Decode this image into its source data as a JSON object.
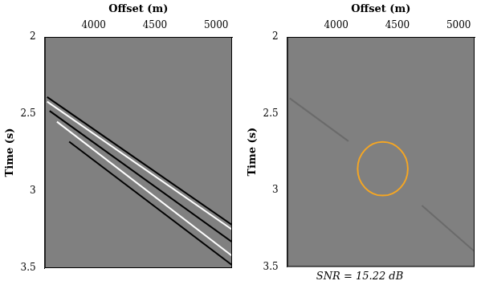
{
  "chart_data": [
    {
      "type": "line",
      "x_label": "Offset (m)",
      "y_label": "Time (s)",
      "xlim": [
        3600,
        5130
      ],
      "xticks": [
        4000,
        4500,
        5000
      ],
      "ylim": [
        2,
        3.5
      ],
      "yticks": [
        2,
        2.5,
        3,
        3.5
      ],
      "grid": false,
      "series": [
        {
          "color": "#000000",
          "x": [
            3620,
            5130
          ],
          "values": [
            2.39,
            3.22
          ]
        },
        {
          "color": "#ffffff",
          "x": [
            3620,
            5130
          ],
          "values": [
            2.42,
            3.25
          ]
        },
        {
          "color": "#000000",
          "x": [
            3640,
            5130
          ],
          "values": [
            2.48,
            3.33
          ]
        },
        {
          "color": "#ffffff",
          "x": [
            3700,
            5130
          ],
          "values": [
            2.55,
            3.42
          ]
        },
        {
          "color": "#000000",
          "x": [
            3800,
            5130
          ],
          "values": [
            2.68,
            3.48
          ]
        }
      ]
    },
    {
      "type": "line",
      "x_label": "Offset (m)",
      "y_label": "Time (s)",
      "subtitle": "SNR = 15.22 dB",
      "xlim": [
        3600,
        5130
      ],
      "xticks": [
        4000,
        4500,
        5000
      ],
      "ylim": [
        2,
        3.5
      ],
      "yticks": [
        2,
        2.5,
        3,
        3.5
      ],
      "grid": false,
      "series": [
        {
          "color": "#6a6a6a",
          "x": [
            3620,
            4100
          ],
          "values": [
            2.4,
            2.68
          ]
        },
        {
          "color": "#6a6a6a",
          "x": [
            4700,
            5130
          ],
          "values": [
            3.1,
            3.4
          ]
        }
      ],
      "circle": {
        "x": 4380,
        "y": 2.86,
        "x_radius": 205,
        "y_radius": 0.175,
        "color": "#f5a623"
      }
    }
  ]
}
